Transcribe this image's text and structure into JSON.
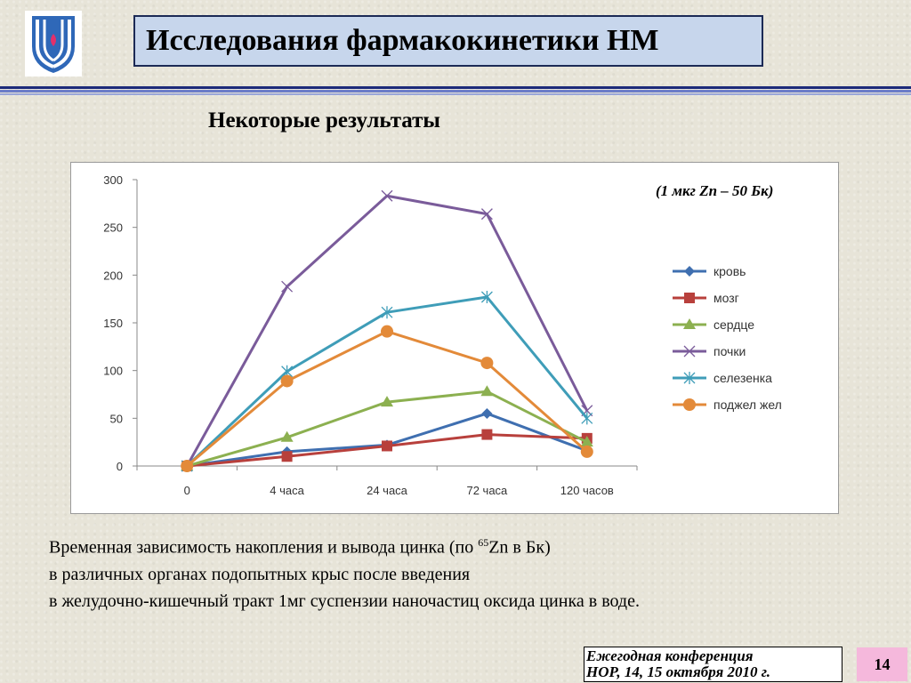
{
  "header": {
    "title": "Исследования фармакокинетики НМ"
  },
  "subtitle": "Некоторые результаты",
  "note": "(1 мкг Zn – 50 Бк)",
  "chart_data": {
    "type": "line",
    "categories": [
      "0",
      "4 часа",
      "24 часа",
      "72 часа",
      "120 часов"
    ],
    "ylim": [
      0,
      300
    ],
    "yticks": [
      0,
      50,
      100,
      150,
      200,
      250,
      300
    ],
    "grid": false,
    "legend_position": "right",
    "series": [
      {
        "name": "кровь",
        "values": [
          0,
          15,
          22,
          55,
          16
        ],
        "color": "#3f6fb0",
        "marker": "diamond"
      },
      {
        "name": "мозг",
        "values": [
          0,
          10,
          21,
          33,
          29
        ],
        "color": "#b8403c",
        "marker": "square"
      },
      {
        "name": "сердце",
        "values": [
          0,
          30,
          67,
          78,
          25
        ],
        "color": "#8cb050",
        "marker": "triangle"
      },
      {
        "name": "почки",
        "values": [
          0,
          188,
          283,
          264,
          58
        ],
        "color": "#7a5b9a",
        "marker": "x"
      },
      {
        "name": "селезенка",
        "values": [
          0,
          99,
          161,
          177,
          50
        ],
        "color": "#3f9db8",
        "marker": "star"
      },
      {
        "name": "поджел жел",
        "values": [
          0,
          89,
          141,
          108,
          15
        ],
        "color": "#e38a39",
        "marker": "circle"
      }
    ]
  },
  "caption": {
    "line1_pre": "Временная зависимость накопления и вывода цинка  (по ",
    "line1_sup": "65",
    "line1_post": "Zn в Бк)",
    "line2": "в различных органах подопытных крыс после введения",
    "line3": "в желудочно-кишечный тракт 1мг суспензии наночастиц оксида цинка в воде."
  },
  "footer": {
    "line1": "Ежегодная конференция",
    "line2": "НОР,  14, 15 октября 2010 г."
  },
  "page_number": "14"
}
